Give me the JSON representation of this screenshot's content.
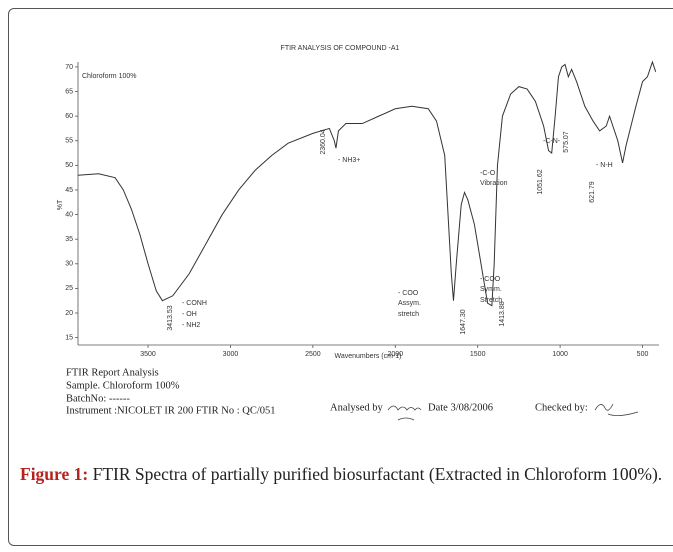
{
  "chart_data": {
    "type": "line",
    "title": "FTIR ANALYSIS OF COMPOUND -A1",
    "x_label": "Wavenumbers (cm-1)",
    "y_label": "%T",
    "color": "#333333",
    "x": [
      3925,
      3800,
      3700,
      3650,
      3600,
      3550,
      3500,
      3450,
      3413,
      3350,
      3250,
      3150,
      3050,
      2950,
      2850,
      2750,
      2650,
      2500,
      2400,
      2370,
      2360,
      2345,
      2300,
      2200,
      2100,
      2000,
      1900,
      1800,
      1750,
      1700,
      1680,
      1660,
      1647,
      1630,
      1600,
      1580,
      1560,
      1520,
      1480,
      1440,
      1414,
      1400,
      1380,
      1350,
      1300,
      1250,
      1200,
      1150,
      1100,
      1070,
      1051,
      1030,
      1010,
      990,
      970,
      950,
      930,
      900,
      850,
      800,
      760,
      720,
      700,
      680,
      650,
      621,
      600,
      570,
      540,
      500,
      470,
      440,
      420
    ],
    "values": [
      48,
      48.3,
      47.5,
      45,
      41,
      36,
      30,
      24.5,
      22.5,
      23.5,
      28,
      34,
      40,
      45,
      49,
      52,
      54.5,
      56.5,
      57.5,
      55,
      53.5,
      57,
      58.5,
      58.5,
      60,
      61.5,
      62,
      61.5,
      59,
      52,
      40,
      28,
      22.5,
      30,
      42,
      44.5,
      43,
      38,
      30,
      22,
      21.5,
      30,
      50,
      60,
      64.5,
      66,
      65.5,
      63,
      58,
      53,
      52.5,
      60,
      68,
      70,
      70.5,
      68,
      69.5,
      67,
      62,
      59,
      57,
      58,
      60,
      58,
      55,
      50.5,
      54,
      58,
      62,
      67,
      68,
      71,
      69
    ],
    "xlim": [
      3925,
      400
    ],
    "ylim": [
      13.5,
      71
    ],
    "xticks": [
      3500,
      3000,
      2500,
      2000,
      1500,
      1000,
      500
    ],
    "yticks": [
      15,
      20,
      25,
      30,
      35,
      40,
      45,
      50,
      55,
      60,
      65,
      70
    ],
    "annotations": [
      "Chloroform 100%",
      "3413.53",
      "- CONH",
      "- OH",
      "- NH2",
      "2360.04",
      "- NH3+",
      "1647.30",
      "- COO",
      "Assym.",
      "stretch",
      "1413.88",
      "- COO",
      "Symm.",
      "Stretch",
      "-C-O",
      "Vibration",
      "1051.62",
      "-C-N-",
      "575.07",
      "621.79",
      "- N-H"
    ]
  },
  "report": {
    "lines": [
      "FTIR Report Analysis",
      "Sample. Chloroform 100%",
      "BatchNo: ------",
      "Instrument :NICOLET IR 200 FTIR No : QC/051"
    ],
    "analysed_by": "Analysed by",
    "date": "Date 3/08/2006",
    "checked_by": "Checked by:"
  },
  "caption": {
    "label": "Figure 1:",
    "text": "FTIR Spectra of partially purified biosurfactant (Extracted in Chloroform 100%)."
  }
}
